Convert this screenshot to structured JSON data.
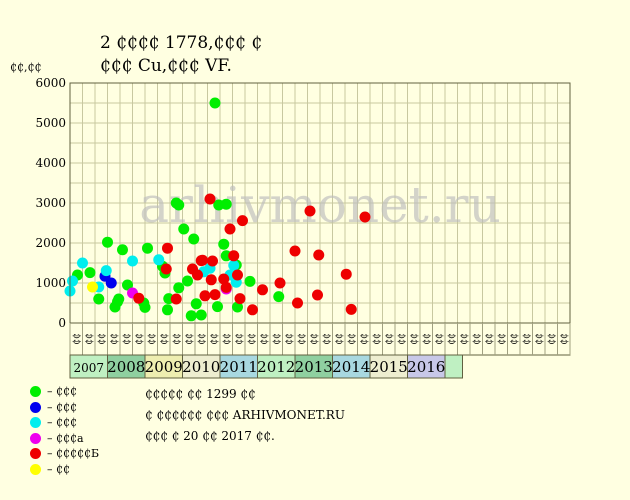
{
  "title_line1": "2 ₵₵₵₵ 1778,₵₵₵ ₵",
  "title_line2": "₵₵₵ Cu,₵₵₵ VF.",
  "chart_data": {
    "type": "scatter",
    "title": "2 ₵₵₵₵ 1778,₵₵₵ ₵ ₵₵₵ Cu,₵₵₵ VF.",
    "ylabel": "₵₵,₵₵",
    "ylim": [
      0,
      6000
    ],
    "yticks": [
      0,
      1000,
      2000,
      3000,
      4000,
      5000,
      6000
    ],
    "grid": true,
    "watermark": "arhivmonet.ru",
    "x_sub_labels": [
      "₵₵",
      "₵₵",
      "₵₵",
      "₵₵",
      "₵₵",
      "₵₵",
      "₵₵",
      "₵₵",
      "₵₵",
      "₵₵",
      "₵₵",
      "₵₵",
      "₵₵",
      "₵₵",
      "₵₵",
      "₵₵",
      "₵₵",
      "₵₵",
      "₵₵",
      "₵₵",
      "₵₵",
      "₵₵",
      "₵₵",
      "₵₵",
      "₵₵",
      "₵₵",
      "₵₵",
      "₵₵",
      "₵₵",
      "₵₵",
      "₵₵",
      "₵₵",
      "₵₵",
      "₵₵",
      "₵₵",
      "₵₵",
      "₵₵",
      "₵₵",
      "₵₵",
      "₵₵"
    ],
    "years": [
      {
        "label": "2007",
        "start": 0,
        "end": 3,
        "color": "#bff0c2"
      },
      {
        "label": "2008",
        "start": 3,
        "end": 6,
        "color": "#8fd0a0"
      },
      {
        "label": "2009",
        "start": 6,
        "end": 9,
        "color": "#eeeeb0"
      },
      {
        "label": "2010",
        "start": 9,
        "end": 12,
        "color": "#eeeed0"
      },
      {
        "label": "2011",
        "start": 12,
        "end": 15,
        "color": "#a8d8e0"
      },
      {
        "label": "2012",
        "start": 15,
        "end": 18,
        "color": "#bff0c2"
      },
      {
        "label": "2013",
        "start": 18,
        "end": 21,
        "color": "#8fd0a0"
      },
      {
        "label": "2014",
        "start": 21,
        "end": 24,
        "color": "#a8d8e0"
      },
      {
        "label": "2015",
        "start": 24,
        "end": 27,
        "color": "#eeeed0"
      },
      {
        "label": "2016",
        "start": 27,
        "end": 30,
        "color": "#c8c8e8"
      },
      {
        "label": "",
        "start": 30,
        "end": 31.4,
        "color": "#bff0c2"
      }
    ],
    "legend": [
      {
        "color": "#00ee00",
        "label": "– ₵₵₵"
      },
      {
        "color": "#0000ee",
        "label": "– ₵₵₵"
      },
      {
        "color": "#00eeee",
        "label": "– ₵₵₵"
      },
      {
        "color": "#ee00ee",
        "label": "– ₵₵₵а"
      },
      {
        "color": "#ee0000",
        "label": "– ₵₵₵₵₵Б"
      },
      {
        "color": "#ffff00",
        "label": "– ₵₵"
      }
    ],
    "series": [
      {
        "name": "₵₵₵",
        "color": "#00ee00",
        "points": [
          [
            0.6,
            1200
          ],
          [
            1.6,
            1260
          ],
          [
            2.3,
            600
          ],
          [
            3.0,
            2020
          ],
          [
            3.6,
            400
          ],
          [
            3.9,
            600
          ],
          [
            3.8,
            530
          ],
          [
            4.2,
            1830
          ],
          [
            4.6,
            950
          ],
          [
            5.9,
            500
          ],
          [
            6.0,
            390
          ],
          [
            6.2,
            1870
          ],
          [
            7.4,
            1420
          ],
          [
            7.6,
            1250
          ],
          [
            7.8,
            330
          ],
          [
            7.9,
            610
          ],
          [
            8.5,
            3000
          ],
          [
            8.7,
            2950
          ],
          [
            8.7,
            880
          ],
          [
            9.1,
            2350
          ],
          [
            9.4,
            1050
          ],
          [
            9.7,
            180
          ],
          [
            9.9,
            2100
          ],
          [
            10.1,
            480
          ],
          [
            10.5,
            200
          ],
          [
            11.6,
            5500
          ],
          [
            11.8,
            410
          ],
          [
            11.9,
            2950
          ],
          [
            12.3,
            1970
          ],
          [
            12.5,
            2970
          ],
          [
            12.5,
            1680
          ],
          [
            13.3,
            1450
          ],
          [
            13.4,
            400
          ],
          [
            14.4,
            1040
          ],
          [
            16.7,
            660
          ]
        ]
      },
      {
        "name": "₵₵₵",
        "color": "#0000ee",
        "points": [
          [
            2.8,
            1170
          ],
          [
            3.3,
            1000
          ]
        ]
      },
      {
        "name": "₵₵₵",
        "color": "#00eeee",
        "points": [
          [
            0.0,
            800
          ],
          [
            0.2,
            1050
          ],
          [
            1.0,
            1500
          ],
          [
            2.3,
            900
          ],
          [
            2.9,
            1310
          ],
          [
            5.0,
            1550
          ],
          [
            7.1,
            1580
          ],
          [
            10.7,
            1280
          ],
          [
            11.2,
            1370
          ],
          [
            12.8,
            1200
          ],
          [
            13.1,
            1440
          ],
          [
            13.3,
            1020
          ]
        ]
      },
      {
        "name": "₵₵₵а",
        "color": "#ee00ee",
        "points": [
          [
            5.0,
            750
          ],
          [
            12.5,
            850
          ]
        ]
      },
      {
        "name": "₵₵₵₵₵Б",
        "color": "#ee0000",
        "points": [
          [
            5.5,
            620
          ],
          [
            7.7,
            1350
          ],
          [
            7.8,
            1870
          ],
          [
            8.5,
            600
          ],
          [
            9.8,
            1350
          ],
          [
            10.2,
            1200
          ],
          [
            10.5,
            1560
          ],
          [
            10.6,
            1570
          ],
          [
            10.8,
            680
          ],
          [
            11.2,
            3100
          ],
          [
            11.4,
            1550
          ],
          [
            11.3,
            1080
          ],
          [
            11.6,
            710
          ],
          [
            12.3,
            1100
          ],
          [
            12.5,
            890
          ],
          [
            12.8,
            2350
          ],
          [
            13.1,
            1680
          ],
          [
            13.4,
            1200
          ],
          [
            13.6,
            610
          ],
          [
            13.8,
            2560
          ],
          [
            14.6,
            330
          ],
          [
            15.4,
            830
          ],
          [
            16.8,
            1000
          ],
          [
            18.0,
            1800
          ],
          [
            18.2,
            500
          ],
          [
            19.2,
            2800
          ],
          [
            19.8,
            700
          ],
          [
            19.9,
            1700
          ],
          [
            22.1,
            1220
          ],
          [
            22.5,
            340
          ],
          [
            23.6,
            2650
          ]
        ]
      },
      {
        "name": "₵₵",
        "color": "#ffff00",
        "points": [
          [
            1.8,
            900
          ]
        ]
      }
    ]
  },
  "notes": [
    "₵₵₵₵₵ ₵₵ 1299 ₵₵",
    "₵ ₵₵₵₵₵₵ ₵₵₵ ARHIVMONET.RU",
    "₵₵₵ ₵ 20 ₵₵ 2017 ₵₵."
  ]
}
